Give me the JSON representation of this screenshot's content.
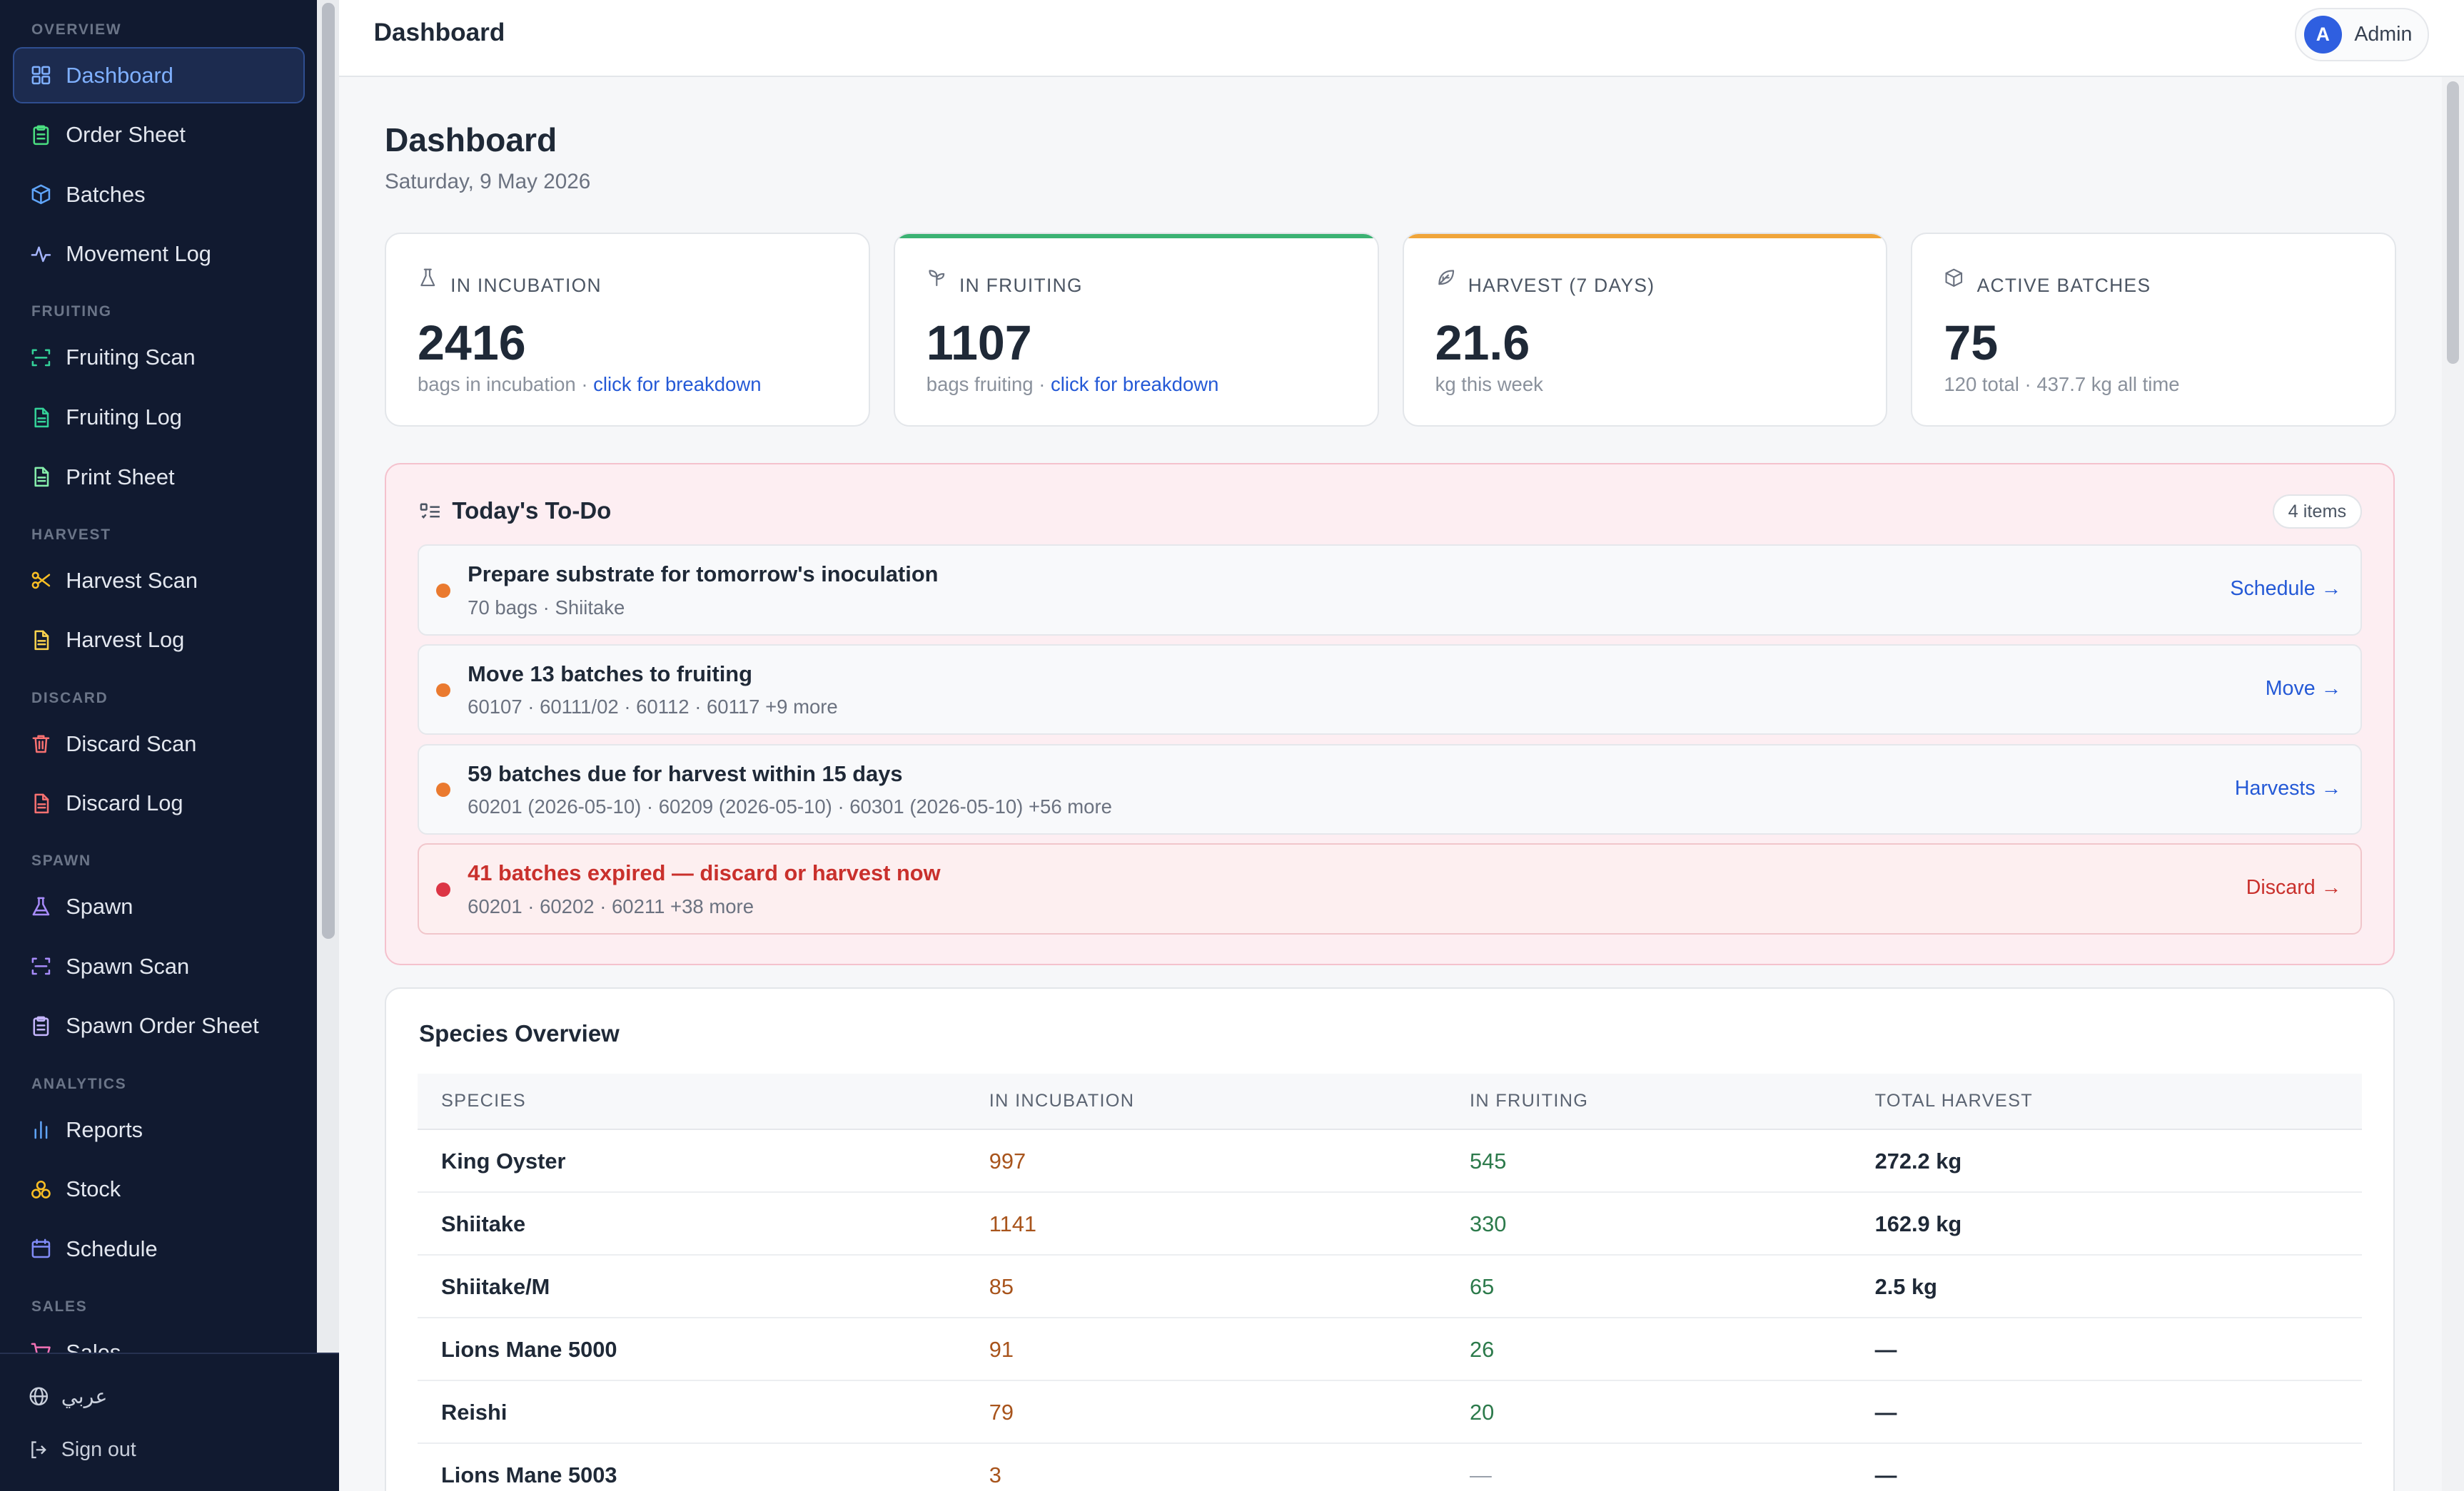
{
  "sidebar": {
    "sections": [
      {
        "label": "OVERVIEW",
        "items": [
          {
            "label": "Dashboard",
            "icon": "dashboard-icon",
            "color": "#7fb0ff",
            "active": true
          },
          {
            "label": "Order Sheet",
            "icon": "clipboard-icon",
            "color": "#4ade80"
          },
          {
            "label": "Batches",
            "icon": "box-icon",
            "color": "#60a5fa"
          },
          {
            "label": "Movement Log",
            "icon": "activity-icon",
            "color": "#a5b4fc"
          }
        ]
      },
      {
        "label": "FRUITING",
        "items": [
          {
            "label": "Fruiting Scan",
            "icon": "scan-icon",
            "color": "#34d399"
          },
          {
            "label": "Fruiting Log",
            "icon": "file-icon",
            "color": "#34d399"
          },
          {
            "label": "Print Sheet",
            "icon": "file-icon",
            "color": "#86efac"
          }
        ]
      },
      {
        "label": "HARVEST",
        "items": [
          {
            "label": "Harvest Scan",
            "icon": "scissors-icon",
            "color": "#fbbf24"
          },
          {
            "label": "Harvest Log",
            "icon": "file-icon",
            "color": "#fcd34d"
          }
        ]
      },
      {
        "label": "DISCARD",
        "items": [
          {
            "label": "Discard Scan",
            "icon": "trash-icon",
            "color": "#f87171"
          },
          {
            "label": "Discard Log",
            "icon": "file-icon",
            "color": "#f87171"
          }
        ]
      },
      {
        "label": "SPAWN",
        "items": [
          {
            "label": "Spawn",
            "icon": "flask-icon",
            "color": "#a78bfa"
          },
          {
            "label": "Spawn Scan",
            "icon": "scan-icon",
            "color": "#a78bfa"
          },
          {
            "label": "Spawn Order Sheet",
            "icon": "clipboard-icon",
            "color": "#c4b5fd"
          }
        ]
      },
      {
        "label": "ANALYTICS",
        "items": [
          {
            "label": "Reports",
            "icon": "bar-chart-icon",
            "color": "#60a5fa"
          },
          {
            "label": "Stock",
            "icon": "stock-icon",
            "color": "#fbbf24"
          },
          {
            "label": "Schedule",
            "icon": "calendar-icon",
            "color": "#818cf8"
          }
        ]
      },
      {
        "label": "SALES",
        "items": [
          {
            "label": "Sales",
            "icon": "cart-icon",
            "color": "#f472b6"
          }
        ]
      }
    ],
    "footer": {
      "language": "عربي",
      "sign_out": "Sign out"
    }
  },
  "topbar": {
    "title": "Dashboard",
    "user_initial": "A",
    "user_name": "Admin"
  },
  "page": {
    "title": "Dashboard",
    "date": "Saturday, 9 May 2026"
  },
  "stats": [
    {
      "label": "IN INCUBATION",
      "value": "2416",
      "sub": "bags in incubation · ",
      "link": "click for breakdown",
      "accent": ""
    },
    {
      "label": "IN FRUITING",
      "value": "1107",
      "sub": "bags fruiting · ",
      "link": "click for breakdown",
      "accent": "#3bb273"
    },
    {
      "label": "HARVEST (7 DAYS)",
      "value": "21.6",
      "sub": "kg this week",
      "link": "",
      "accent": "#f0a53a"
    },
    {
      "label": "ACTIVE BATCHES",
      "value": "75",
      "sub": "120 total · 437.7 kg all time",
      "link": "",
      "accent": ""
    }
  ],
  "todo": {
    "title": "Today's To-Do",
    "badge": "4 items",
    "items": [
      {
        "title": "Prepare substrate for tomorrow's inoculation",
        "sub": "70 bags · Shiitake",
        "action": "Schedule →",
        "level": "warn"
      },
      {
        "title": "Move 13 batches to fruiting",
        "sub": "60107 · 60111/02 · 60112 · 60117 +9 more",
        "action": "Move →",
        "level": "warn"
      },
      {
        "title": "59 batches due for harvest within 15 days",
        "sub": "60201 (2026-05-10) · 60209 (2026-05-10) · 60301 (2026-05-10) +56 more",
        "action": "Harvests →",
        "level": "warn"
      },
      {
        "title": "41 batches expired — discard or harvest now",
        "sub": "60201 · 60202 · 60211 +38 more",
        "action": "Discard →",
        "level": "danger"
      }
    ]
  },
  "species": {
    "title": "Species Overview",
    "columns": [
      "SPECIES",
      "IN INCUBATION",
      "IN FRUITING",
      "TOTAL HARVEST"
    ],
    "rows": [
      [
        "King Oyster",
        "997",
        "545",
        "272.2 kg"
      ],
      [
        "Shiitake",
        "1141",
        "330",
        "162.9 kg"
      ],
      [
        "Shiitake/M",
        "85",
        "65",
        "2.5 kg"
      ],
      [
        "Lions Mane 5000",
        "91",
        "26",
        "—"
      ],
      [
        "Reishi",
        "79",
        "20",
        "—"
      ],
      [
        "Lions Mane 5003",
        "3",
        "—",
        "—"
      ]
    ]
  }
}
